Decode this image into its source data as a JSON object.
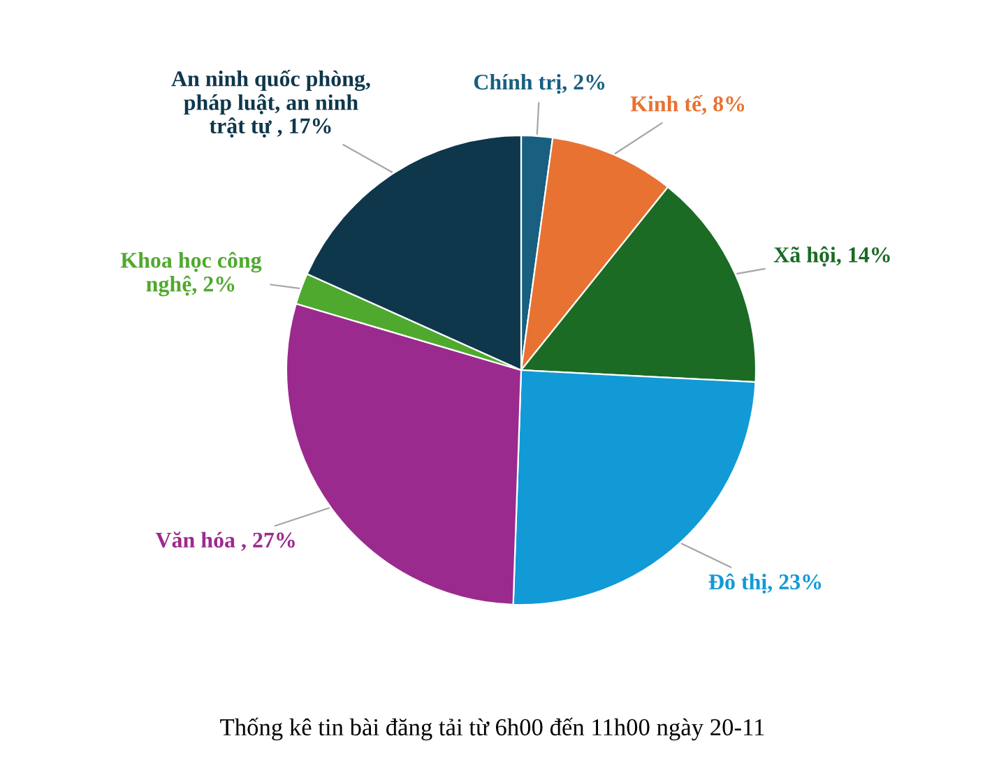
{
  "chart_data": {
    "type": "pie",
    "title": "Thống kê tin bài đăng tải từ 6h00 đến 11h00 ngày 20-11",
    "categories": [
      "Chính trị",
      "Kinh tế",
      "Xã hội",
      "Đô thị",
      "Văn hóa ",
      "Khoa học công\nnghệ",
      "An ninh quốc phòng,\npháp luật, an ninh\ntrật tự "
    ],
    "values": [
      2,
      8,
      14,
      23,
      27,
      2,
      17
    ],
    "value_labels": [
      "2%",
      "8%",
      "14%",
      "23%",
      "27%",
      "2%",
      "17%"
    ],
    "colors": [
      "#185f80",
      "#e87232",
      "#1b6b24",
      "#119ad6",
      "#9b2a8e",
      "#4fa92e",
      "#0e374c"
    ]
  }
}
